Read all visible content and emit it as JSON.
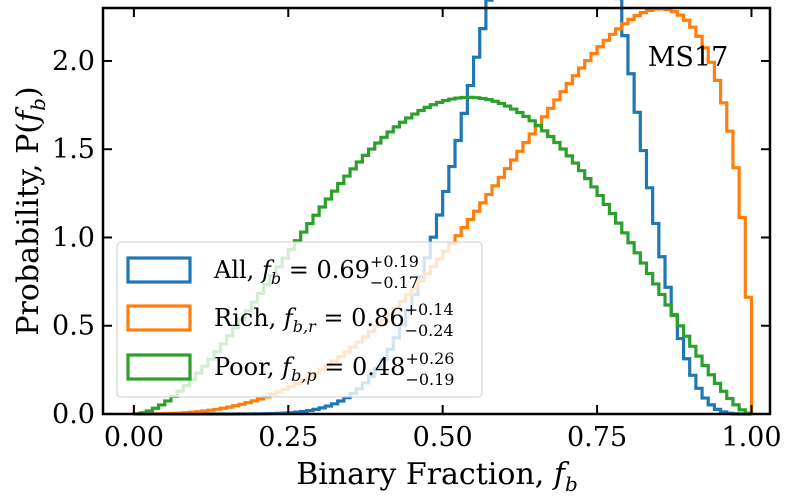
{
  "chart_data": {
    "type": "histogram-step",
    "title": "",
    "annotation": "MS17",
    "xlabel": "Binary Fraction, f_b",
    "ylabel": "Probability, P(f_b)",
    "xlabel_parts": {
      "text": "Binary Fraction, ",
      "var": "f",
      "sub": "b"
    },
    "ylabel_parts": {
      "text": "Probability, P(",
      "var": "f",
      "sub": "b",
      "close": ")"
    },
    "xlim": [
      -0.05,
      1.03
    ],
    "ylim": [
      0.0,
      2.3
    ],
    "xticks": [
      0.0,
      0.25,
      0.5,
      0.75,
      1.0
    ],
    "xtick_labels": [
      "0.00",
      "0.25",
      "0.50",
      "0.75",
      "1.00"
    ],
    "yticks": [
      0.0,
      0.5,
      1.0,
      1.5,
      2.0
    ],
    "ytick_labels": [
      "0.0",
      "0.5",
      "1.0",
      "1.5",
      "2.0"
    ],
    "bins": 100,
    "legend_position": "lower-left",
    "series": [
      {
        "name": "All",
        "color": "#1f77b4",
        "a": 11.3,
        "b": 5.7,
        "legend": {
          "name": "All, ",
          "var": "f",
          "sub": "b",
          "value": " = 0.69",
          "plus": "+0.19",
          "minus": "−0.17"
        }
      },
      {
        "name": "Rich",
        "color": "#ff7f0e",
        "a": 3.9,
        "b": 1.5,
        "legend": {
          "name": "Rich, ",
          "var": "f",
          "sub": "b,r",
          "value": " = 0.86",
          "plus": "+0.14",
          "minus": "−0.24"
        }
      },
      {
        "name": "Poor",
        "color": "#2ca02c",
        "a": 2.9,
        "b": 2.6,
        "legend": {
          "name": "Poor, ",
          "var": "f",
          "sub": "b,p",
          "value": " = 0.48",
          "plus": "+0.26",
          "minus": "−0.19"
        }
      }
    ]
  }
}
